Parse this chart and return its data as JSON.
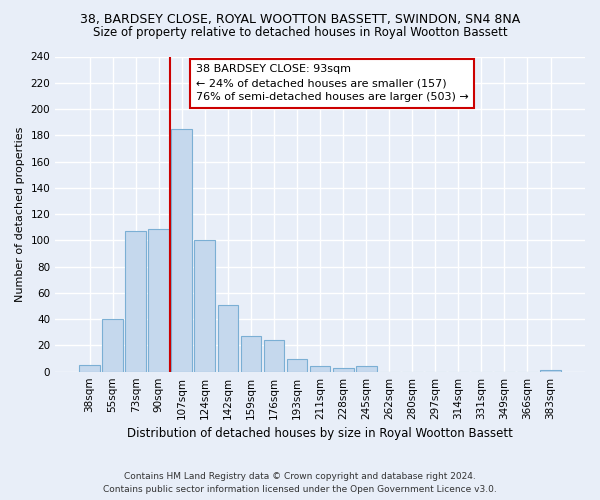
{
  "title": "38, BARDSEY CLOSE, ROYAL WOOTTON BASSETT, SWINDON, SN4 8NA",
  "subtitle": "Size of property relative to detached houses in Royal Wootton Bassett",
  "xlabel": "Distribution of detached houses by size in Royal Wootton Bassett",
  "ylabel": "Number of detached properties",
  "footer_line1": "Contains HM Land Registry data © Crown copyright and database right 2024.",
  "footer_line2": "Contains public sector information licensed under the Open Government Licence v3.0.",
  "bar_labels": [
    "38sqm",
    "55sqm",
    "73sqm",
    "90sqm",
    "107sqm",
    "124sqm",
    "142sqm",
    "159sqm",
    "176sqm",
    "193sqm",
    "211sqm",
    "228sqm",
    "245sqm",
    "262sqm",
    "280sqm",
    "297sqm",
    "314sqm",
    "331sqm",
    "349sqm",
    "366sqm",
    "383sqm"
  ],
  "bar_values": [
    5,
    40,
    107,
    109,
    185,
    100,
    51,
    27,
    24,
    10,
    4,
    3,
    4,
    0,
    0,
    0,
    0,
    0,
    0,
    0,
    1
  ],
  "bar_color": "#c5d8ed",
  "bar_edge_color": "#7bafd4",
  "ylim": [
    0,
    240
  ],
  "yticks": [
    0,
    20,
    40,
    60,
    80,
    100,
    120,
    140,
    160,
    180,
    200,
    220,
    240
  ],
  "property_bar_index": 3,
  "annotation_title": "38 BARDSEY CLOSE: 93sqm",
  "annotation_line1": "← 24% of detached houses are smaller (157)",
  "annotation_line2": "76% of semi-detached houses are larger (503) →",
  "annotation_box_color": "#ffffff",
  "annotation_box_edge": "#cc0000",
  "vline_color": "#cc0000",
  "background_color": "#e8eef8",
  "grid_color": "#ffffff",
  "title_fontsize": 9,
  "subtitle_fontsize": 8.5,
  "ylabel_fontsize": 8,
  "xlabel_fontsize": 8.5,
  "tick_fontsize": 7.5,
  "annotation_fontsize": 8,
  "footer_fontsize": 6.5
}
